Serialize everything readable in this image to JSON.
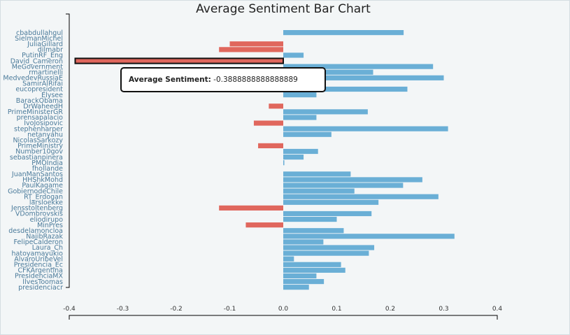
{
  "chart_data": {
    "type": "bar",
    "orientation": "horizontal",
    "title": "Average Sentiment Bar Chart",
    "xlim": [
      -0.4,
      0.4
    ],
    "x_ticks": [
      "-0.4",
      "-0.3",
      "-0.2",
      "-0.1",
      "0.0",
      "0.1",
      "0.2",
      "0.3",
      "0.4"
    ],
    "colors": {
      "positive": "#6aafd6",
      "negative": "#e0675d"
    },
    "categories": [
      "cbabdullahgul",
      "SielmanMichel",
      "JuliaGillard",
      "dilmabr",
      "PutinRF_Eng",
      "David_Cameron",
      "MeGovernment",
      "rmartinelli",
      "MedvedevRussiaE",
      "SamirAlRifai",
      "eucopresident",
      "Elysee",
      "BarackObama",
      "DrWaheedH",
      "PrimeMinisterGR",
      "prensapalacio",
      "IvoJosipovic",
      "stephenharper",
      "netanyahu",
      "NicolasSarkozy",
      "PrimeMinistry",
      "Number10gov",
      "sebastianpinera",
      "PMOIndia",
      "fhollande",
      "JuanManSantos",
      "HHShkMohd",
      "PaulKagame",
      "GobiernodeChile",
      "RT_Erdogan",
      "larsloekke",
      "Jensstoltenberg",
      "VDombrovskis",
      "eliodirupo",
      "MinPres",
      "desdelamoncloa",
      "NajibRazak",
      "FelipeCalderon",
      "Laura_Ch",
      "hatoyamayukio",
      "AlvaroUribeVel",
      "Presidencia_Ec",
      "CFKArgentina",
      "PresidenciaMX",
      "IlvesToomas",
      "presidenciacr"
    ],
    "values": [
      0.225,
      0,
      -0.1,
      -0.12,
      0.038,
      -0.3888888888888889,
      0.28,
      0.168,
      0.3,
      0.05,
      0.232,
      0.062,
      0,
      -0.027,
      0.158,
      0.062,
      -0.055,
      0.308,
      0.09,
      0,
      -0.047,
      0.065,
      0.038,
      0.002,
      0,
      0.126,
      0.26,
      0.224,
      0.133,
      0.29,
      0.178,
      -0.12,
      0.165,
      0.1,
      -0.07,
      0.113,
      0.32,
      0.075,
      0.17,
      0.16,
      0.02,
      0.108,
      0.116,
      0.062,
      0.076,
      0.048
    ]
  },
  "tooltip": {
    "label": "Average Sentiment:",
    "value": "-0.3888888888888889"
  }
}
